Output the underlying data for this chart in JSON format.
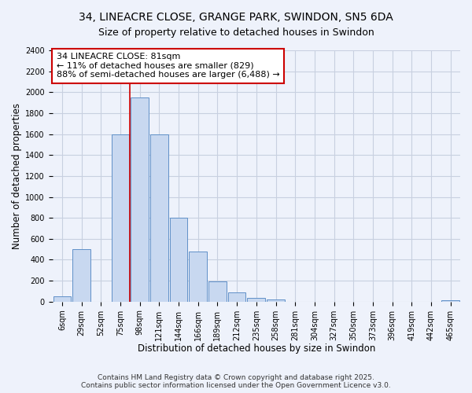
{
  "title": "34, LINEACRE CLOSE, GRANGE PARK, SWINDON, SN5 6DA",
  "subtitle": "Size of property relative to detached houses in Swindon",
  "xlabel": "Distribution of detached houses by size in Swindon",
  "ylabel": "Number of detached properties",
  "categories": [
    "6sqm",
    "29sqm",
    "52sqm",
    "75sqm",
    "98sqm",
    "121sqm",
    "144sqm",
    "166sqm",
    "189sqm",
    "212sqm",
    "235sqm",
    "258sqm",
    "281sqm",
    "304sqm",
    "327sqm",
    "350sqm",
    "373sqm",
    "396sqm",
    "419sqm",
    "442sqm",
    "465sqm"
  ],
  "values": [
    50,
    500,
    0,
    1600,
    1950,
    1600,
    800,
    480,
    190,
    90,
    35,
    20,
    0,
    0,
    0,
    0,
    0,
    0,
    0,
    0,
    10
  ],
  "bar_color": "#c8d8f0",
  "bar_edge_color": "#6090c8",
  "property_line_x": 3.5,
  "property_line_color": "#cc0000",
  "annotation_title": "34 LINEACRE CLOSE: 81sqm",
  "annotation_line1": "← 11% of detached houses are smaller (829)",
  "annotation_line2": "88% of semi-detached houses are larger (6,488) →",
  "annotation_box_color": "white",
  "annotation_box_edge_color": "#cc0000",
  "ylim": [
    0,
    2400
  ],
  "yticks": [
    0,
    200,
    400,
    600,
    800,
    1000,
    1200,
    1400,
    1600,
    1800,
    2000,
    2200,
    2400
  ],
  "background_color": "#eef2fb",
  "grid_color": "#c8d0e0",
  "footer1": "Contains HM Land Registry data © Crown copyright and database right 2025.",
  "footer2": "Contains public sector information licensed under the Open Government Licence v3.0.",
  "title_fontsize": 10,
  "subtitle_fontsize": 9,
  "axis_label_fontsize": 8.5,
  "tick_fontsize": 7,
  "annotation_fontsize": 8,
  "footer_fontsize": 6.5
}
